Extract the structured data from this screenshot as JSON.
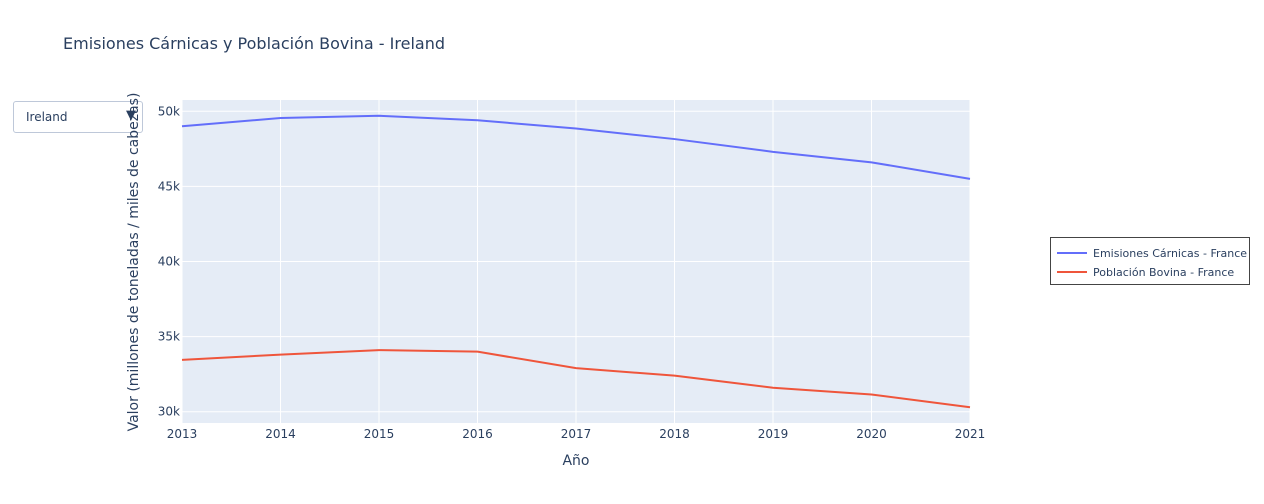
{
  "title": "Emisiones Cárnicas y Población Bovina - Ireland",
  "dropdown": {
    "selected": "Ireland",
    "caret": "▼"
  },
  "chart_data": {
    "type": "line",
    "title": "Emisiones Cárnicas y Población Bovina - Ireland",
    "xlabel": "Año",
    "ylabel": "Valor (millones de toneladas / miles de cabezas)",
    "x": [
      2013,
      2014,
      2015,
      2016,
      2017,
      2018,
      2019,
      2020,
      2021
    ],
    "xlim": [
      2013,
      2021
    ],
    "ylim": [
      29250,
      50750
    ],
    "yticks": [
      30000,
      35000,
      40000,
      45000,
      50000
    ],
    "ytick_labels": [
      "30k",
      "35k",
      "40k",
      "45k",
      "50k"
    ],
    "grid": true,
    "legend_position": "right",
    "series": [
      {
        "name": "Emisiones Cárnicas - France",
        "color": "#636efa",
        "values": [
          49000,
          49550,
          49700,
          49400,
          48850,
          48150,
          47300,
          46600,
          45500
        ]
      },
      {
        "name": "Población Bovina - France",
        "color": "#ef553b",
        "values": [
          33450,
          33800,
          34100,
          34000,
          32900,
          32400,
          31600,
          31150,
          30300
        ]
      }
    ]
  }
}
